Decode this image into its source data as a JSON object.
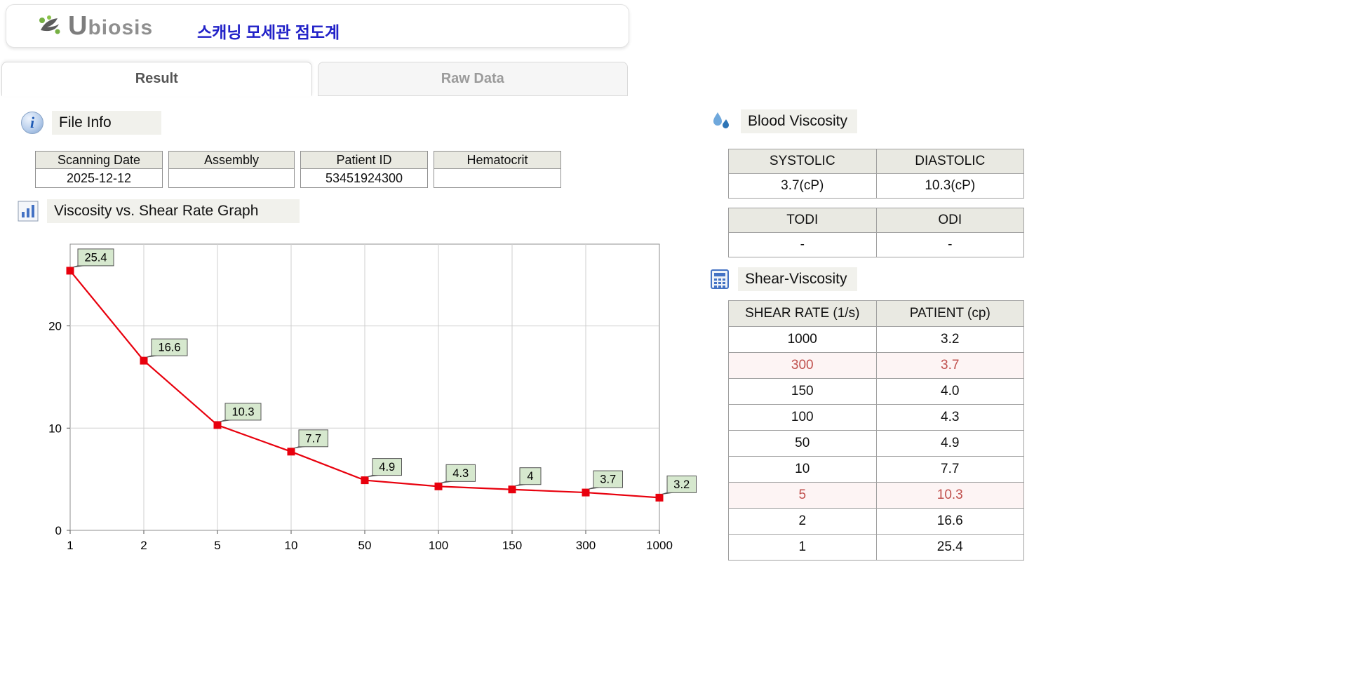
{
  "header": {
    "logo_text": "Ubiosis",
    "title": "스캐닝 모세관 점도계"
  },
  "tabs": [
    {
      "label": "Result",
      "active": true
    },
    {
      "label": "Raw Data",
      "active": false
    }
  ],
  "file_info": {
    "section_title": "File Info",
    "fields": [
      {
        "label": "Scanning Date",
        "value": "2025-12-12"
      },
      {
        "label": "Assembly",
        "value": ""
      },
      {
        "label": "Patient ID",
        "value": "53451924300"
      },
      {
        "label": "Hematocrit",
        "value": ""
      }
    ]
  },
  "graph_section": {
    "section_title": "Viscosity vs. Shear Rate Graph"
  },
  "chart_data": {
    "type": "line",
    "title": "Viscosity vs. Shear Rate Graph",
    "categories": [
      "1",
      "2",
      "5",
      "10",
      "50",
      "100",
      "150",
      "300",
      "1000"
    ],
    "values": [
      25.4,
      16.6,
      10.3,
      7.7,
      4.9,
      4.3,
      4,
      3.7,
      3.2
    ],
    "point_labels": [
      "25.4",
      "16.6",
      "10.3",
      "7.7",
      "4.9",
      "4.3",
      "4",
      "3.7",
      "3.2"
    ],
    "xlabel": "",
    "ylabel": "",
    "ylim": [
      0,
      28
    ],
    "yticks": [
      0,
      10,
      20
    ],
    "grid": true,
    "legend": "none",
    "line_color": "#e8000d",
    "marker": "square",
    "label_bg": "#d6e8ce"
  },
  "blood_viscosity": {
    "section_title": "Blood Viscosity",
    "table1": {
      "headers": [
        "SYSTOLIC",
        "DIASTOLIC"
      ],
      "values": [
        "3.7(cP)",
        "10.3(cP)"
      ]
    },
    "table2": {
      "headers": [
        "TODI",
        "ODI"
      ],
      "values": [
        "-",
        "-"
      ]
    }
  },
  "shear_viscosity": {
    "section_title": "Shear-Viscosity",
    "headers": [
      "SHEAR RATE (1/s)",
      "PATIENT (cp)"
    ],
    "rows": [
      {
        "shear": "1000",
        "patient": "3.2",
        "highlight": false
      },
      {
        "shear": "300",
        "patient": "3.7",
        "highlight": true
      },
      {
        "shear": "150",
        "patient": "4.0",
        "highlight": false
      },
      {
        "shear": "100",
        "patient": "4.3",
        "highlight": false
      },
      {
        "shear": "50",
        "patient": "4.9",
        "highlight": false
      },
      {
        "shear": "10",
        "patient": "7.7",
        "highlight": false
      },
      {
        "shear": "5",
        "patient": "10.3",
        "highlight": true
      },
      {
        "shear": "2",
        "patient": "16.6",
        "highlight": false
      },
      {
        "shear": "1",
        "patient": "25.4",
        "highlight": false
      }
    ]
  }
}
